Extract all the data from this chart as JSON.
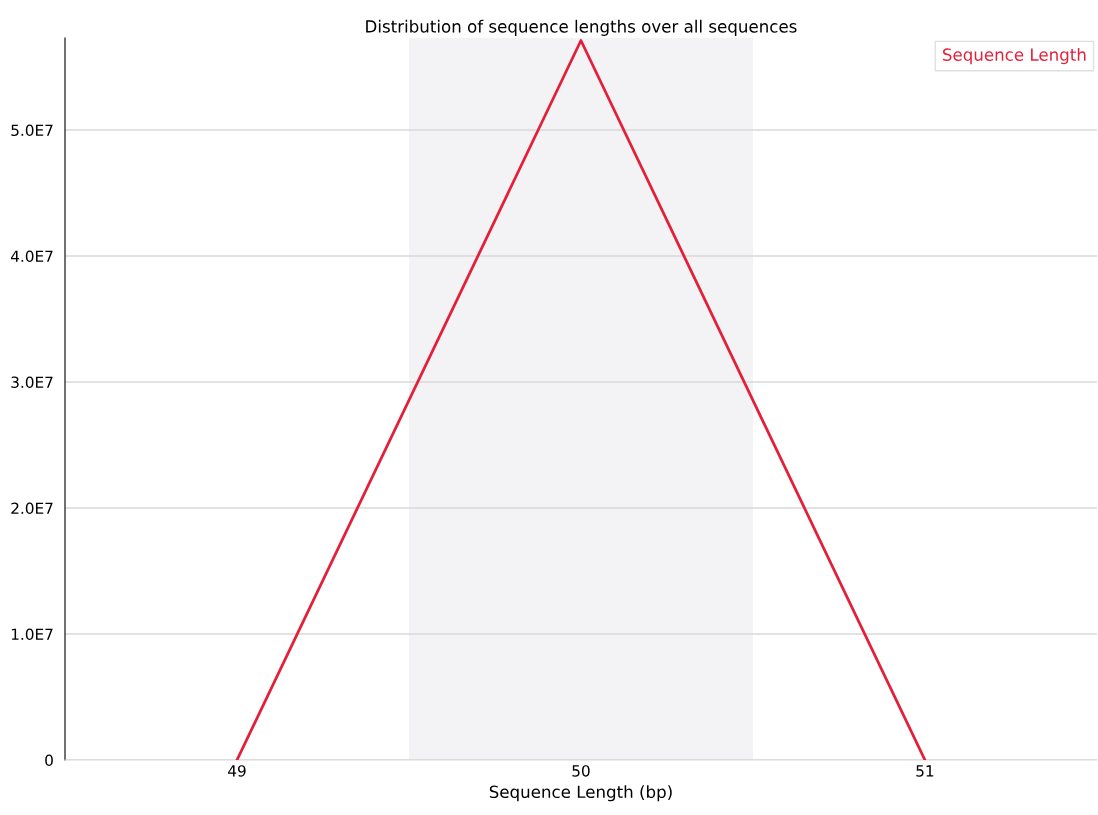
{
  "chart_data": {
    "type": "line",
    "title": "Distribution of sequence lengths over all sequences",
    "xlabel": "Sequence Length (bp)",
    "x": [
      49,
      50,
      51
    ],
    "series": [
      {
        "name": "Sequence Length",
        "color": "#e3203a",
        "values": [
          0,
          57100000,
          0
        ]
      }
    ],
    "xlim": [
      48.5,
      51.5
    ],
    "xticks": [
      49,
      50,
      51
    ],
    "ylim": [
      0,
      57300000
    ],
    "yticks": [
      {
        "value": 0,
        "label": "0"
      },
      {
        "value": 10000000,
        "label": "1.0E7"
      },
      {
        "value": 20000000,
        "label": "2.0E7"
      },
      {
        "value": 30000000,
        "label": "3.0E7"
      },
      {
        "value": 40000000,
        "label": "4.0E7"
      },
      {
        "value": 50000000,
        "label": "5.0E7"
      }
    ],
    "bands": [
      {
        "axis": "x",
        "from": 49.5,
        "to": 50.5,
        "color": "#f3f3f6"
      }
    ],
    "grid": "y",
    "legend": "top right",
    "marker": "none",
    "line_style": "solid"
  }
}
